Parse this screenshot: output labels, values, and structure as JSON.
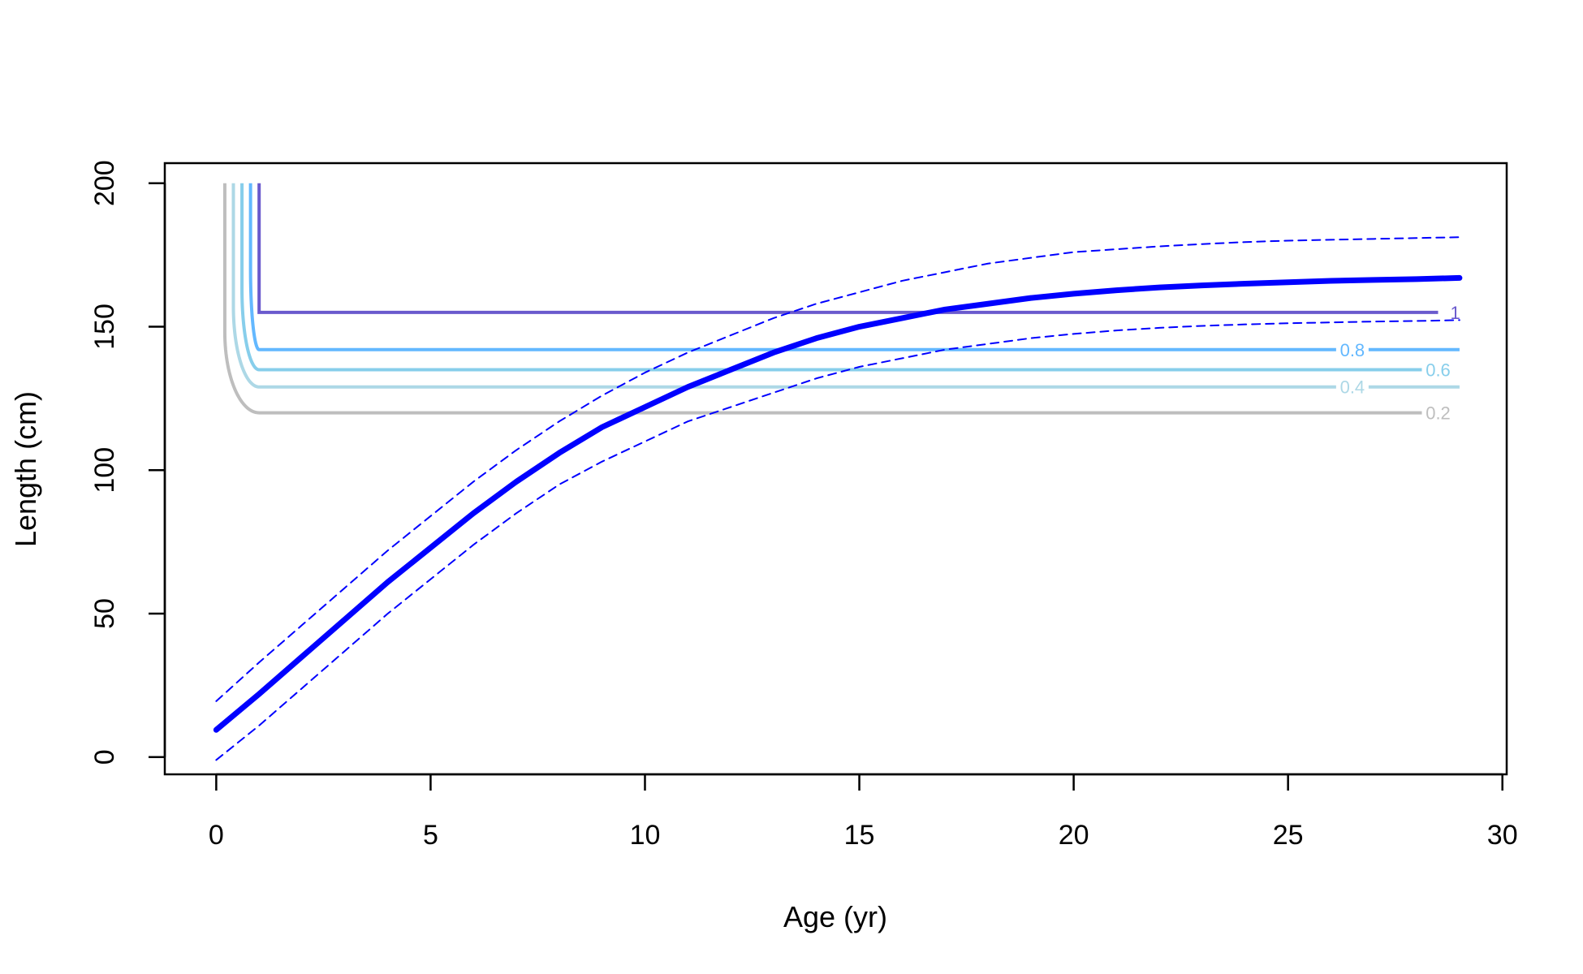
{
  "chart_data": {
    "type": "line",
    "xlabel": "Age (yr)",
    "ylabel": "Length (cm)",
    "xlim": [
      -1.2,
      30.1
    ],
    "ylim": [
      -6,
      207
    ],
    "x_ticks": [
      0,
      5,
      10,
      15,
      20,
      25,
      30
    ],
    "y_ticks": [
      0,
      50,
      100,
      150,
      200
    ],
    "grid": false,
    "legend": "none",
    "growth_curve": {
      "color": "#0000ff",
      "style": "solid",
      "x": [
        0,
        1,
        2,
        3,
        4,
        5,
        6,
        7,
        8,
        9,
        10,
        11,
        12,
        13,
        14,
        15,
        16,
        17,
        18,
        19,
        20,
        21,
        22,
        23,
        24,
        25,
        26,
        27,
        28,
        29
      ],
      "y": [
        9.5,
        22,
        35,
        48,
        61,
        73,
        85,
        96,
        106,
        115,
        122,
        129,
        135,
        141,
        146,
        150,
        153,
        156,
        158,
        160,
        161.5,
        162.7,
        163.7,
        164.4,
        165,
        165.5,
        166,
        166.3,
        166.6,
        167
      ]
    },
    "upper_interval": {
      "color": "#0000ff",
      "style": "dashed",
      "x": [
        0,
        1,
        2,
        3,
        4,
        5,
        6,
        7,
        8,
        9,
        10,
        11,
        12,
        13,
        14,
        15,
        16,
        17,
        18,
        19,
        20,
        21,
        22,
        23,
        24,
        25,
        26,
        27,
        28,
        29
      ],
      "y": [
        19.5,
        33,
        46,
        59,
        72,
        84,
        96,
        107,
        117,
        126,
        134,
        141,
        147,
        153,
        158,
        162,
        166,
        169,
        172,
        174,
        176,
        177,
        178,
        178.8,
        179.5,
        180,
        180.3,
        180.6,
        180.9,
        181.2
      ]
    },
    "lower_interval": {
      "color": "#0000ff",
      "style": "dashed",
      "x": [
        0,
        1,
        2,
        3,
        4,
        5,
        6,
        7,
        8,
        9,
        10,
        11,
        12,
        13,
        14,
        15,
        16,
        17,
        18,
        19,
        20,
        21,
        22,
        23,
        24,
        25,
        26,
        27,
        28,
        29
      ],
      "y": [
        -1,
        11,
        24,
        37,
        50,
        62,
        74,
        85,
        95,
        103,
        110,
        117,
        122,
        127,
        132,
        136,
        139,
        142,
        144,
        146,
        147.5,
        148.7,
        149.6,
        150.3,
        150.8,
        151.2,
        151.5,
        151.8,
        152,
        152.3
      ]
    },
    "contours": [
      {
        "label": "1",
        "color": "#6a5acd",
        "x_start": 1.0,
        "x_end": 28.5,
        "plateau": 155,
        "label_x": 28.9,
        "label_color": "#6a5acd"
      },
      {
        "label": "0.8",
        "color": "#63b8ff",
        "x_start": 0.8,
        "x_end": 29.0,
        "plateau": 142,
        "label_x": 26.5,
        "label_color": "#63b8ff"
      },
      {
        "label": "0.6",
        "color": "#87ceeb",
        "x_start": 0.6,
        "x_end": 28.2,
        "plateau": 135,
        "label_x": 28.5,
        "label_color": "#87ceeb"
      },
      {
        "label": "0.4",
        "color": "#add8e6",
        "x_start": 0.4,
        "x_end": 29.0,
        "plateau": 129,
        "label_x": 26.5,
        "label_color": "#add8e6"
      },
      {
        "label": "0.2",
        "color": "#bebebe",
        "x_start": 0.2,
        "x_end": 28.2,
        "plateau": 120,
        "label_x": 28.5,
        "label_color": "#bebebe"
      }
    ]
  }
}
